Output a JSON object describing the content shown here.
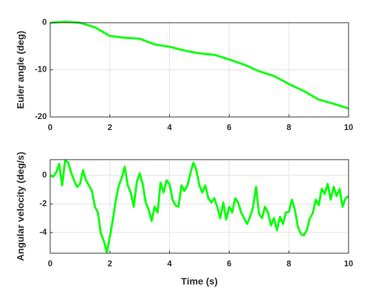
{
  "chart_data": [
    {
      "type": "line",
      "ylabel": "Euler angle (deg)",
      "x": [
        0,
        0.5,
        1,
        1.5,
        2,
        2.5,
        3,
        3.5,
        4,
        4.5,
        5,
        5.5,
        6,
        6.5,
        7,
        7.5,
        8,
        8.5,
        9,
        9.5,
        10
      ],
      "series": [
        {
          "color": "#00ff00",
          "values": [
            0,
            0.2,
            0,
            -1,
            -2.8,
            -3.2,
            -3.4,
            -4.6,
            -5.1,
            -5.9,
            -6.5,
            -6.8,
            -7.8,
            -8.9,
            -10.3,
            -11.3,
            -13,
            -14.5,
            -16.3,
            -17.2,
            -18.2
          ]
        }
      ],
      "xlim": [
        0,
        10
      ],
      "xticks": [
        0,
        2,
        4,
        6,
        8,
        10
      ],
      "ylim": [
        -20,
        0
      ],
      "yticks": [
        -20,
        -10,
        0
      ],
      "grid": true
    },
    {
      "type": "line",
      "ylabel": "Angular velocity (deg/s)",
      "xlabel": "Time (s)",
      "x": [
        0,
        0.1,
        0.2,
        0.3,
        0.4,
        0.5,
        0.6,
        0.7,
        0.8,
        0.9,
        1,
        1.1,
        1.2,
        1.3,
        1.4,
        1.5,
        1.6,
        1.7,
        1.8,
        1.9,
        2,
        2.1,
        2.2,
        2.3,
        2.4,
        2.5,
        2.6,
        2.7,
        2.8,
        2.9,
        3,
        3.1,
        3.2,
        3.3,
        3.4,
        3.5,
        3.6,
        3.7,
        3.8,
        3.9,
        4,
        4.1,
        4.2,
        4.3,
        4.4,
        4.5,
        4.6,
        4.7,
        4.8,
        4.9,
        5,
        5.1,
        5.2,
        5.3,
        5.4,
        5.5,
        5.6,
        5.7,
        5.8,
        5.9,
        6,
        6.1,
        6.2,
        6.3,
        6.4,
        6.5,
        6.6,
        6.7,
        6.8,
        6.9,
        7,
        7.1,
        7.2,
        7.3,
        7.4,
        7.5,
        7.6,
        7.7,
        7.8,
        7.9,
        8,
        8.1,
        8.2,
        8.3,
        8.4,
        8.5,
        8.6,
        8.7,
        8.8,
        8.9,
        9,
        9.1,
        9.2,
        9.3,
        9.4,
        9.5,
        9.6,
        9.7,
        9.8,
        9.9,
        10
      ],
      "series": [
        {
          "color": "#00ff00",
          "values": [
            0,
            -0.1,
            0.2,
            0.8,
            -0.7,
            1.05,
            0.9,
            0.2,
            -0.35,
            -0.8,
            -0.6,
            0.35,
            -0.35,
            -0.7,
            -1.1,
            -2.2,
            -2.6,
            -4.1,
            -4.6,
            -5.4,
            -4.3,
            -3.1,
            -1.7,
            -0.7,
            -0.15,
            0.6,
            -0.7,
            -1.2,
            -2.2,
            -0.5,
            0.15,
            -0.6,
            -1.9,
            -2.4,
            -3.2,
            -2.2,
            -2.6,
            -0.5,
            -1.2,
            -0.35,
            -0.6,
            -1.7,
            -2.1,
            -2.2,
            -0.7,
            -1.1,
            -0.7,
            0.15,
            0.9,
            0.35,
            -0.7,
            -1.2,
            -0.7,
            -1.6,
            -1.9,
            -1.6,
            -2.2,
            -3,
            -1.9,
            -3.1,
            -2.2,
            -2.6,
            -1.6,
            -1.9,
            -2.6,
            -3,
            -3.4,
            -2.9,
            -2.2,
            -0.8,
            -2.7,
            -3,
            -2.2,
            -2.6,
            -3.5,
            -3,
            -3.85,
            -2.9,
            -3.4,
            -2.6,
            -2.55,
            -1.7,
            -2.4,
            -3.6,
            -4.1,
            -4.2,
            -3.85,
            -3,
            -2.65,
            -1.7,
            -2.1,
            -0.95,
            -1.3,
            -0.6,
            -1.7,
            -0.8,
            -1.45,
            -0.95,
            -2.2,
            -1.6,
            -1.45
          ]
        }
      ],
      "xlim": [
        0,
        10
      ],
      "xticks": [
        0,
        2,
        4,
        6,
        8,
        10
      ],
      "ylim": [
        -5.45,
        1.1
      ],
      "yticks": [
        -4,
        -2,
        0
      ],
      "grid": true
    }
  ]
}
